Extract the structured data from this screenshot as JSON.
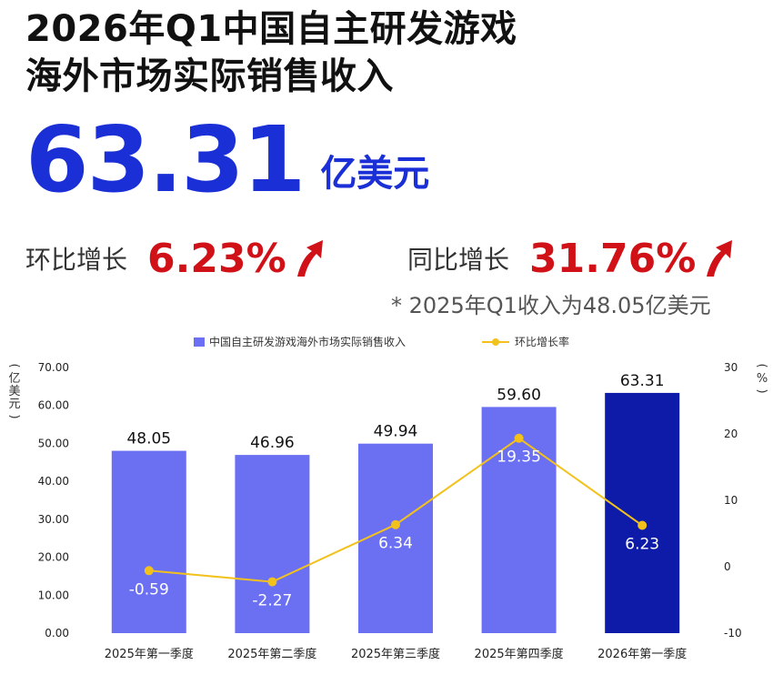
{
  "header": {
    "title_line1": "2026年Q1中国自主研发游戏",
    "title_line2": "海外市场实际销售收入",
    "big_value": "63.31",
    "big_unit": "亿美元",
    "qoq_label": "环比增长",
    "qoq_value": "6.23%",
    "yoy_label": "同比增长",
    "yoy_value": "31.76%",
    "footnote": "* 2025年Q1收入为48.05亿美元"
  },
  "colors": {
    "bar": "#6b70f2",
    "bar_highlight": "#0d1ba8",
    "line": "#f2c11c",
    "accent_blue": "#1a2fd6",
    "accent_red": "#d01218"
  },
  "chart_data": {
    "type": "bar",
    "categories": [
      "2025年第一季度",
      "2025年第二季度",
      "2025年第三季度",
      "2025年第四季度",
      "2026年第一季度"
    ],
    "series": [
      {
        "name": "中国自主研发游戏海外市场实际销售收入",
        "type": "bar",
        "axis": "left",
        "values": [
          48.05,
          46.96,
          49.94,
          59.6,
          63.31
        ],
        "labels": [
          "48.05",
          "46.96",
          "49.94",
          "59.60",
          "63.31"
        ]
      },
      {
        "name": "环比增长率",
        "type": "line",
        "axis": "right",
        "values": [
          -0.59,
          -2.27,
          6.34,
          19.35,
          6.23
        ],
        "labels": [
          "-0.59",
          "-2.27",
          "6.34",
          "19.35",
          "6.23"
        ]
      }
    ],
    "ylabel": "(亿美元)",
    "ylabel_right": "(%)",
    "ylim": [
      0,
      70
    ],
    "ylim_right": [
      -10,
      30
    ],
    "yticks": [
      "0.00",
      "10.00",
      "20.00",
      "30.00",
      "40.00",
      "50.00",
      "60.00",
      "70.00"
    ],
    "yticks_right": [
      "-10",
      "0",
      "10",
      "20",
      "30"
    ],
    "legend_position": "top-center",
    "grid": false
  }
}
